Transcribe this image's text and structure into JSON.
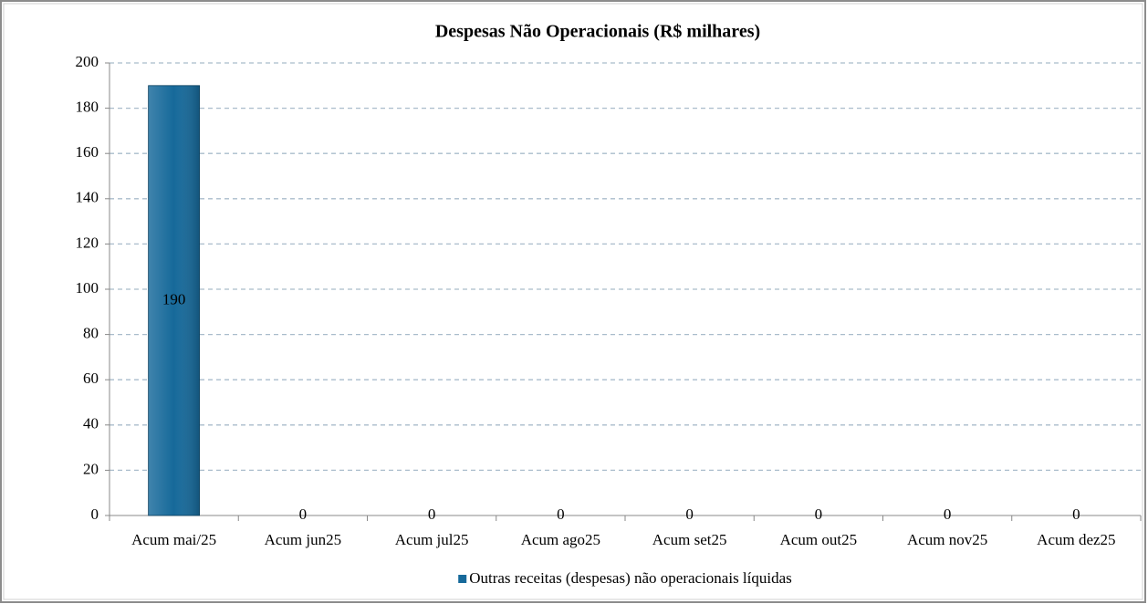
{
  "chart_data": {
    "type": "bar",
    "title": "Despesas Não Operacionais (R$ milhares)",
    "categories": [
      "Acum mai/25",
      "Acum jun25",
      "Acum jul25",
      "Acum ago25",
      "Acum set25",
      "Acum out25",
      "Acum nov25",
      "Acum dez25"
    ],
    "series": [
      {
        "name": "Outras receitas (despesas) não operacionais líquidas",
        "color": "#16699a",
        "values": [
          190,
          0,
          0,
          0,
          0,
          0,
          0,
          0
        ]
      }
    ],
    "ylim": [
      0,
      200
    ],
    "yticks": [
      0,
      20,
      40,
      60,
      80,
      100,
      120,
      140,
      160,
      180,
      200
    ],
    "grid": true,
    "legend": "bottom"
  }
}
